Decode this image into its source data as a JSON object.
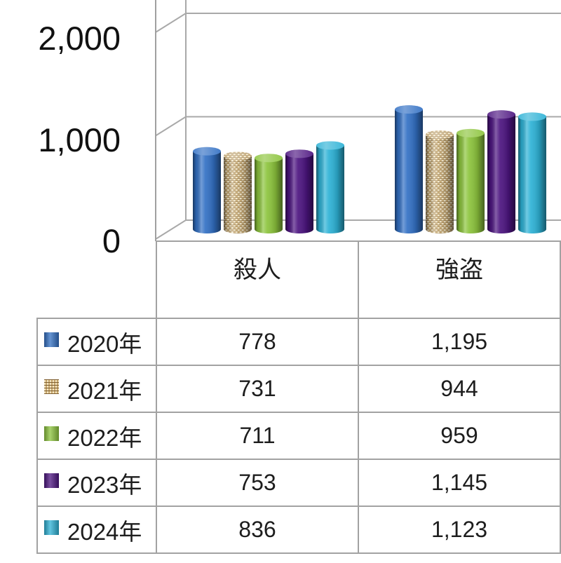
{
  "chart_data": {
    "type": "bar",
    "categories": [
      "殺人",
      "強盗"
    ],
    "series": [
      {
        "name": "2020年",
        "values": [
          778,
          1195
        ],
        "color": "#3270c4"
      },
      {
        "name": "2021年",
        "values": [
          731,
          944
        ],
        "color": "#d6bb82",
        "pattern": "weave"
      },
      {
        "name": "2022年",
        "values": [
          711,
          959
        ],
        "color": "#8cc43c"
      },
      {
        "name": "2023年",
        "values": [
          753,
          1145
        ],
        "color": "#4c1480"
      },
      {
        "name": "2024年",
        "values": [
          836,
          1123
        ],
        "color": "#2db2d6"
      }
    ],
    "yticks": [
      0,
      1000,
      2000
    ],
    "ylim": [
      0,
      2000
    ],
    "grid": true,
    "legend": "data-table",
    "data_table": true
  }
}
